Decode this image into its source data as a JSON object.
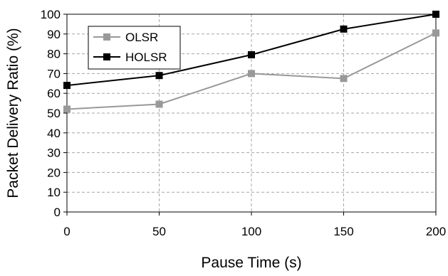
{
  "chart_data": {
    "type": "line",
    "xlabel": "Pause Time (s)",
    "ylabel": "Packet Delivery Ratio (%)",
    "x": [
      0,
      50,
      100,
      150,
      200
    ],
    "xlim": [
      0,
      200
    ],
    "ylim": [
      0,
      100
    ],
    "x_ticks": [
      "0",
      "50",
      "100",
      "150",
      "200"
    ],
    "y_ticks": [
      "0",
      "10",
      "20",
      "30",
      "40",
      "50",
      "60",
      "70",
      "80",
      "90",
      "100"
    ],
    "grid": "dashed",
    "legend_position": "top-left",
    "series": [
      {
        "name": "OLSR",
        "values": [
          52,
          54.5,
          70,
          67.5,
          90.5
        ],
        "color": "#999999",
        "marker": "square"
      },
      {
        "name": "HOLSR",
        "values": [
          64,
          69,
          79.5,
          92.5,
          100
        ],
        "color": "#000000",
        "marker": "square"
      }
    ]
  }
}
